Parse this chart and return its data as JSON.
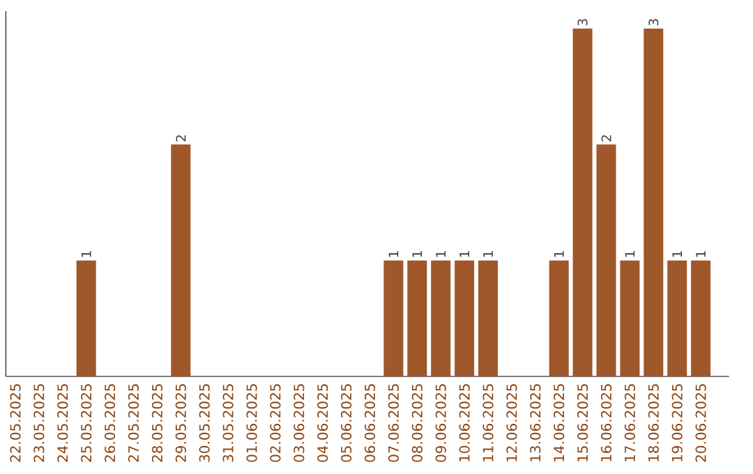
{
  "chart_data": {
    "type": "bar",
    "categories": [
      "22.05.2025",
      "23.05.2025",
      "24.05.2025",
      "25.05.2025",
      "26.05.2025",
      "27.05.2025",
      "28.05.2025",
      "29.05.2025",
      "30.05.2025",
      "31.05.2025",
      "01.06.2025",
      "02.06.2025",
      "03.06.2025",
      "04.06.2025",
      "05.06.2025",
      "06.06.2025",
      "07.06.2025",
      "08.06.2025",
      "09.06.2025",
      "10.06.2025",
      "11.06.2025",
      "12.06.2025",
      "13.06.2025",
      "14.06.2025",
      "15.06.2025",
      "16.06.2025",
      "17.06.2025",
      "18.06.2025",
      "19.06.2025",
      "20.06.2025"
    ],
    "values": [
      0,
      0,
      0,
      1,
      0,
      0,
      0,
      2,
      0,
      0,
      0,
      0,
      0,
      0,
      0,
      0,
      1,
      1,
      1,
      1,
      1,
      0,
      0,
      1,
      3,
      2,
      1,
      3,
      1,
      1
    ],
    "color": "#a0572a",
    "ylim": [
      0,
      3.15
    ],
    "value_labels": [
      null,
      null,
      null,
      "1",
      null,
      null,
      null,
      "2",
      null,
      null,
      null,
      null,
      null,
      null,
      null,
      null,
      "1",
      "1",
      "1",
      "1",
      "1",
      null,
      null,
      "1",
      "3",
      "2",
      "1",
      "3",
      "1",
      "1"
    ],
    "grid": false
  }
}
